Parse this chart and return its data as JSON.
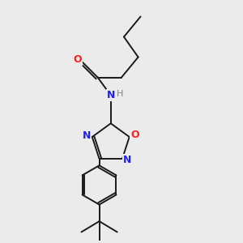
{
  "background_color": "#ebebeb",
  "bond_color": "#1a1a1a",
  "bond_width": 1.4,
  "N_color": "#2020ff",
  "O_color": "#ff2020",
  "figsize": [
    3.0,
    3.0
  ],
  "dpi": 100,
  "xlim": [
    0,
    10
  ],
  "ylim": [
    0,
    10
  ]
}
